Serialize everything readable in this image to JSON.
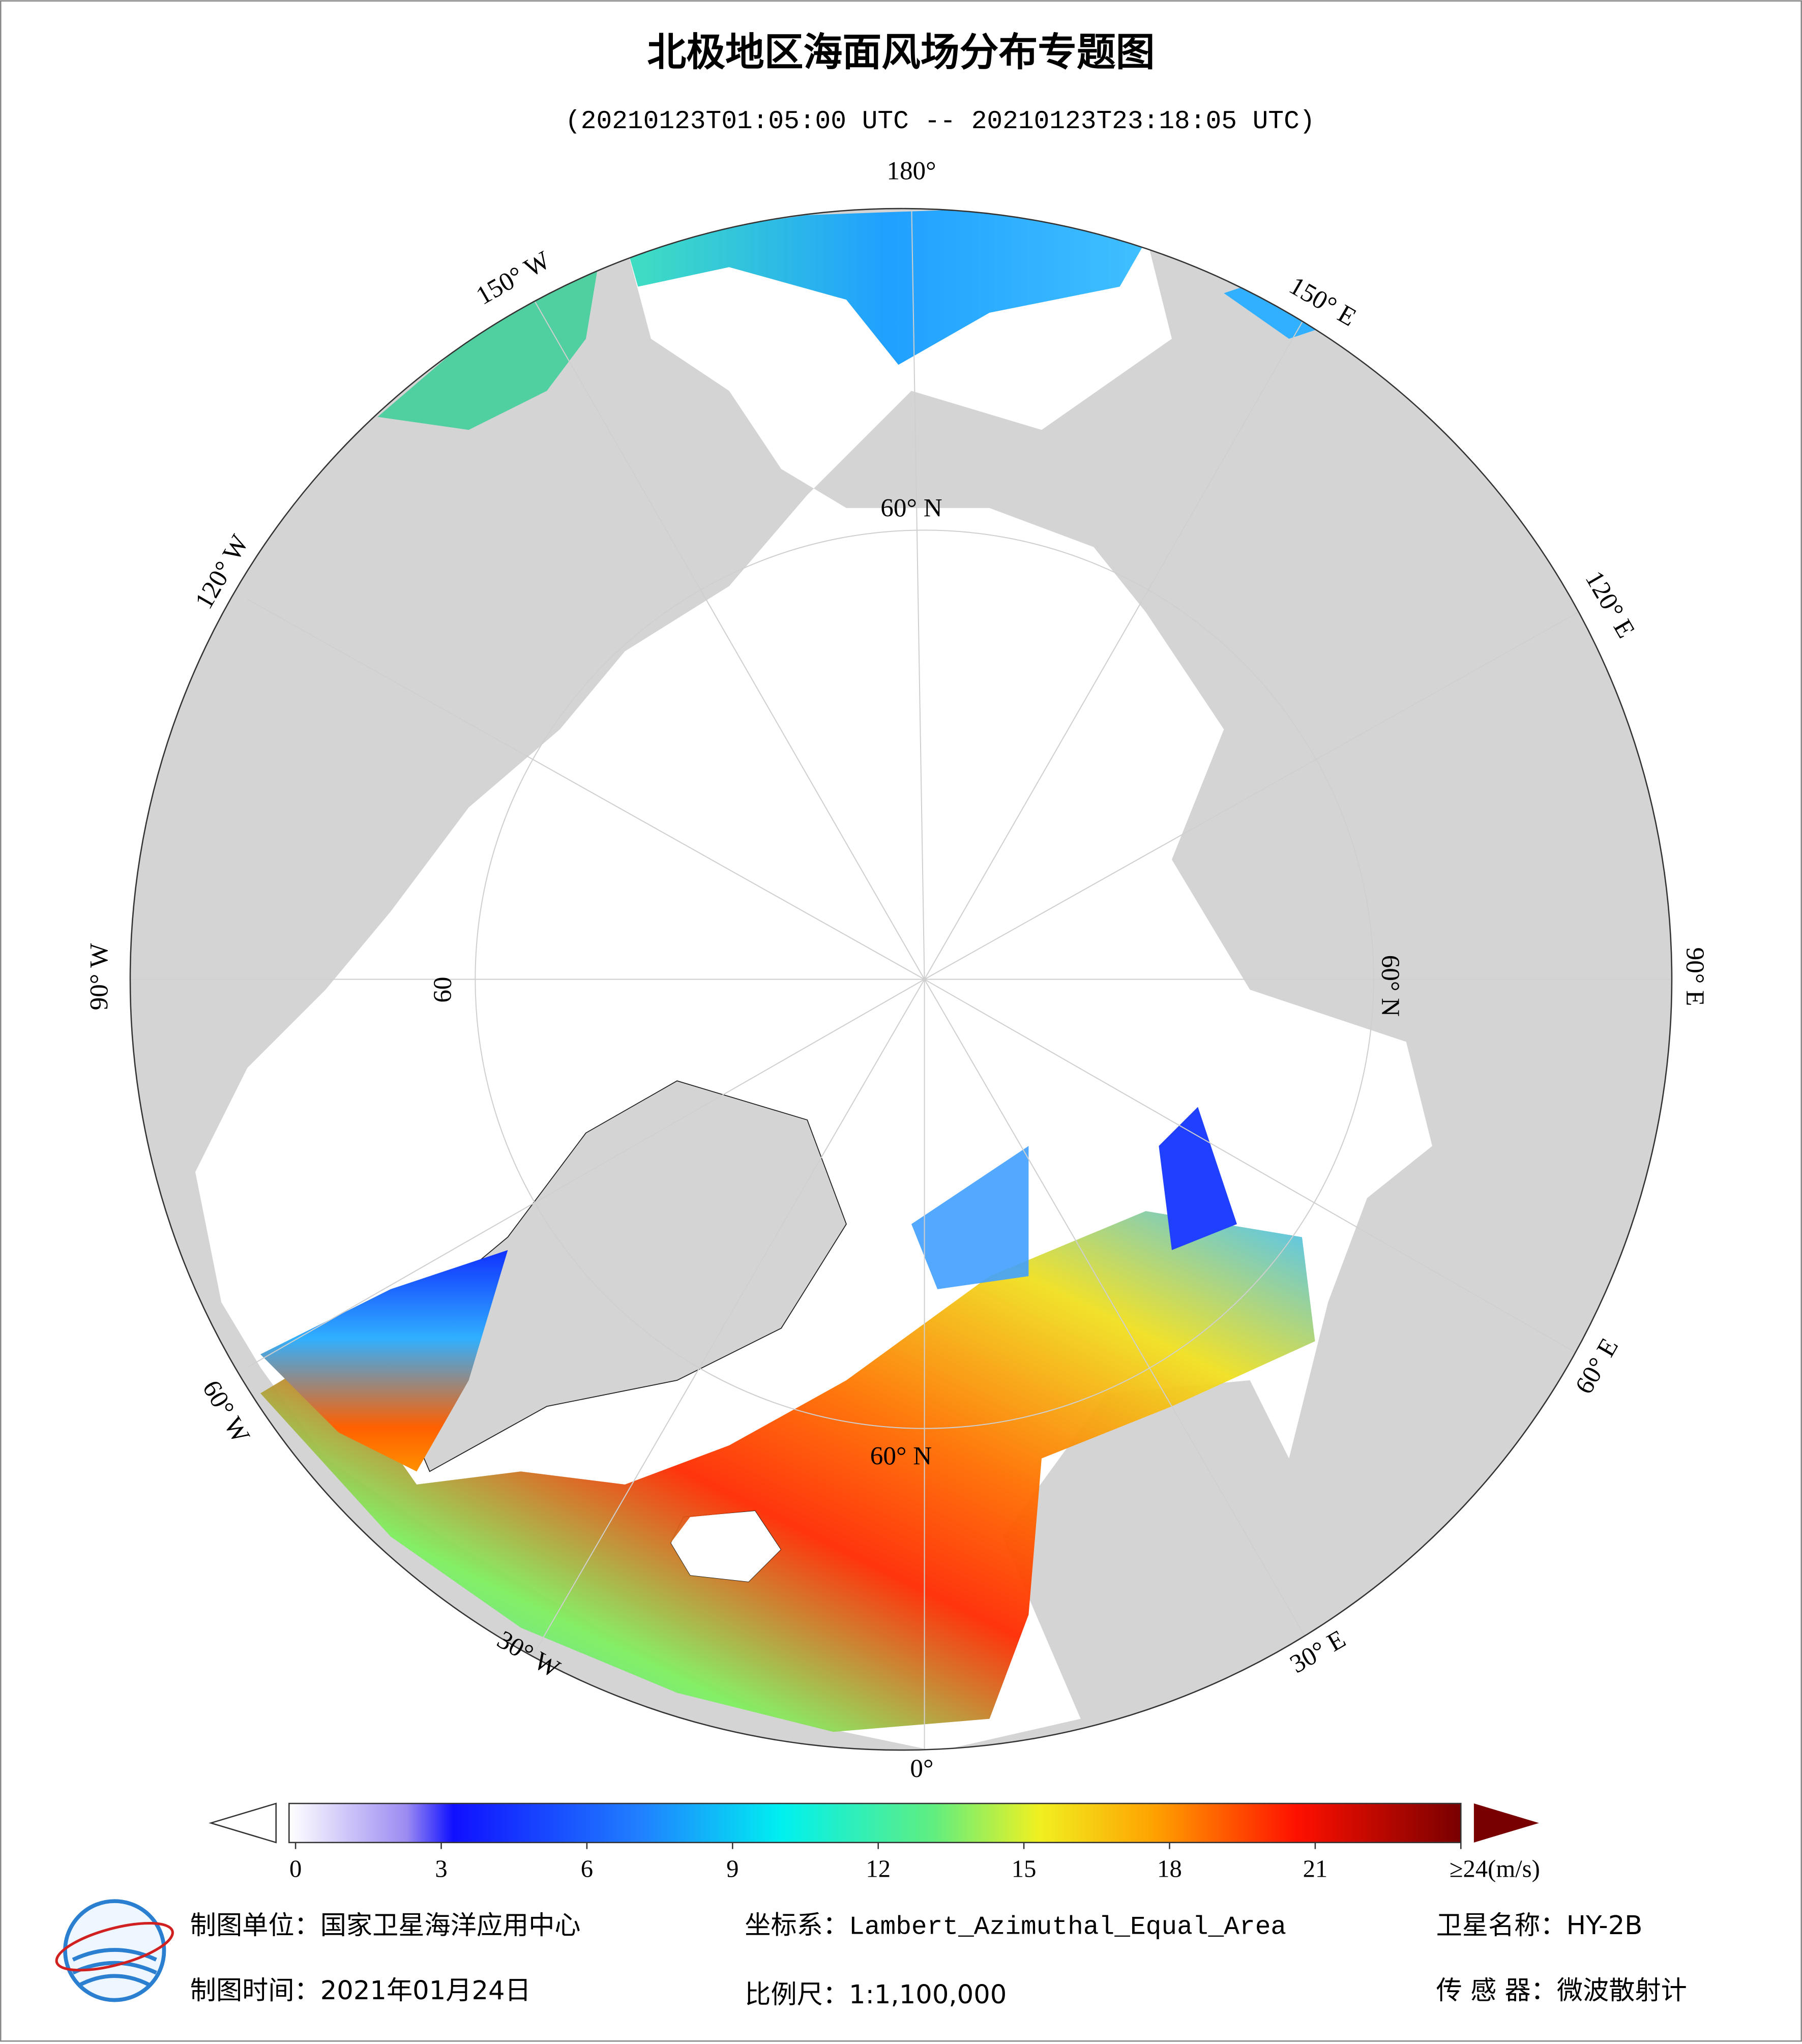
{
  "header": {
    "title": "北极地区海面风场分布专题图",
    "subtitle": "(20210123T01:05:00 UTC -- 20210123T23:18:05 UTC)"
  },
  "map": {
    "graticule_labels": [
      "180°",
      "150° E",
      "120° E",
      "90° E",
      "60° E",
      "30° E",
      "0°",
      "30° W",
      "60° W",
      "90° W",
      "120° W",
      "150° W"
    ],
    "latitude_labels": [
      "60° N",
      "60° N",
      "60",
      "60° N"
    ]
  },
  "colorbar": {
    "range": [
      0,
      24
    ],
    "ticks": [
      0,
      3,
      6,
      9,
      12,
      15,
      18,
      21,
      {
        "value": 24,
        "label": "≥24(m/s)"
      }
    ]
  },
  "footer": {
    "unit": "制图单位：国家卫星海洋应用中心",
    "crs": "坐标系：Lambert_Azimuthal_Equal_Area",
    "satellite": "卫星名称：HY-2B",
    "date": "制图时间：2021年01月24日",
    "scale": "比例尺：1:1,100,000",
    "sensor": "传 感 器：微波散射计"
  }
}
